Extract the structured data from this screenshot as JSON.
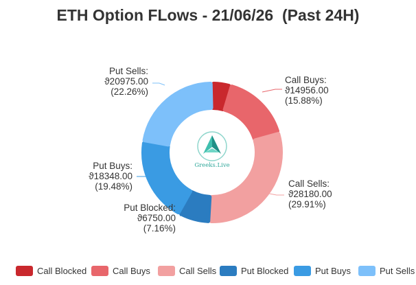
{
  "chart_data": {
    "type": "pie",
    "style": "donut",
    "title": "ETH Option FLows - 21/06/26  (Past 24H)",
    "currency_symbol": "ϑ",
    "slices": [
      {
        "name": "Call Blocked",
        "value": 3970.0,
        "percent": "4.21%",
        "color": "#c9282d",
        "show_label": false
      },
      {
        "name": "Call Buys",
        "value": 14956.0,
        "value_label": "ϑ14956.00",
        "percent_label": "(15.88%)",
        "color": "#e8666b",
        "show_label": true
      },
      {
        "name": "Call Sells",
        "value": 28180.0,
        "value_label": "ϑ28180.00",
        "percent_label": "(29.91%)",
        "color": "#f2a0a0",
        "show_label": true
      },
      {
        "name": "Put Blocked",
        "value": 6750.0,
        "value_label": "ϑ6750.00",
        "percent_label": "(7.16%)",
        "color": "#2b7cc0",
        "show_label": true
      },
      {
        "name": "Put Buys",
        "value": 18348.0,
        "value_label": "ϑ18348.00",
        "percent_label": "(19.48%)",
        "color": "#3a9be3",
        "show_label": true
      },
      {
        "name": "Put Sells",
        "value": 20975.0,
        "value_label": "ϑ20975.00",
        "percent_label": "(22.26%)",
        "color": "#7dc0fa",
        "show_label": true
      }
    ],
    "legend": {
      "position": "bottom",
      "items": [
        "Call Blocked",
        "Call Buys",
        "Call Sells",
        "Put Blocked",
        "Put Buys",
        "Put Sells"
      ]
    },
    "center_logo": {
      "text": "Greeks.Live"
    }
  }
}
